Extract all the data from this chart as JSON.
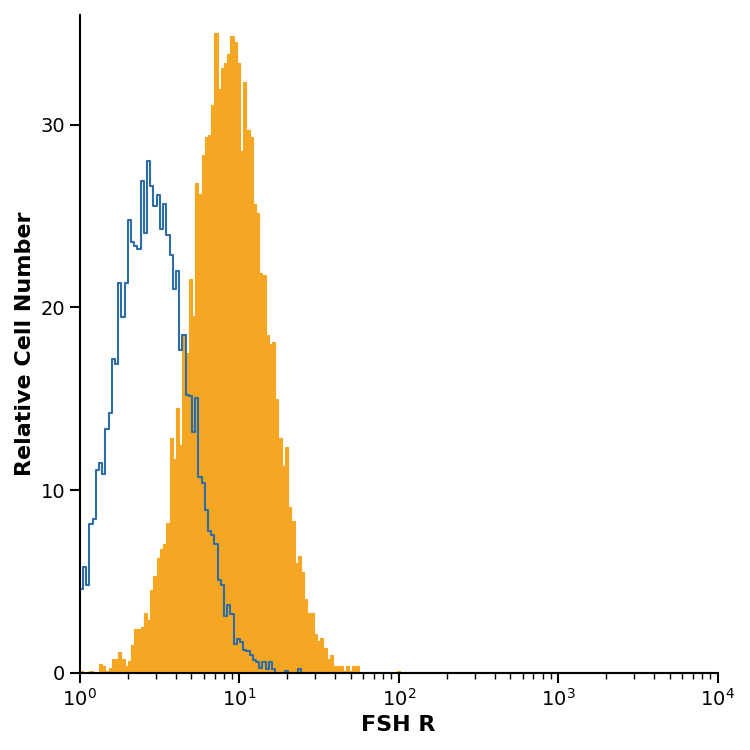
{
  "title": "",
  "xlabel": "FSH R",
  "ylabel": "Relative Cell Number",
  "xlim_log": [
    0,
    4
  ],
  "ylim": [
    0,
    36
  ],
  "yticks": [
    0,
    10,
    20,
    30
  ],
  "background_color": "#ffffff",
  "blue_color": "#2e6da4",
  "orange_color": "#f5a623",
  "blue_linewidth": 1.5,
  "orange_linewidth": 0.8,
  "xlabel_fontsize": 16,
  "ylabel_fontsize": 16,
  "tick_labelsize": 14
}
